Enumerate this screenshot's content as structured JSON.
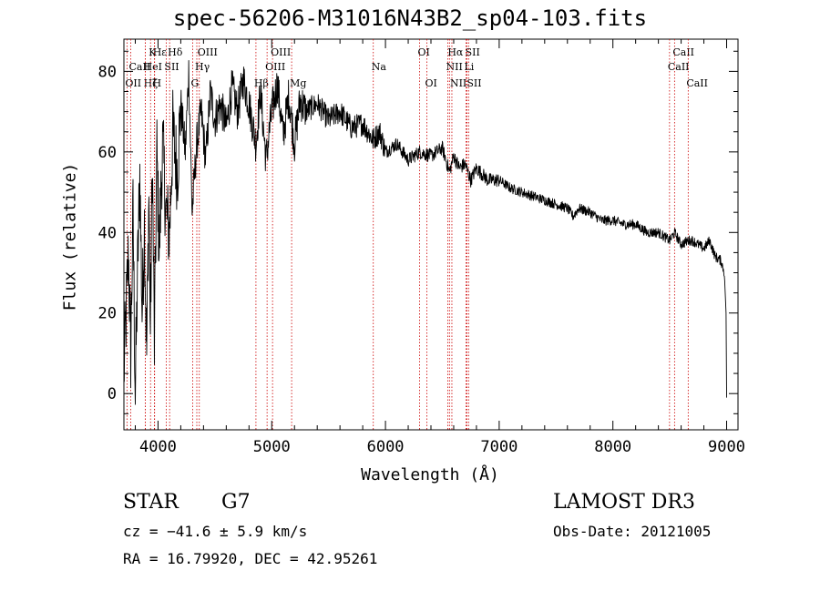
{
  "header": {
    "title": "spec-56206-M31016N43B2_sp04-103.fits"
  },
  "info": {
    "class_label": "STAR",
    "subclass": "G7",
    "survey": "LAMOST DR3",
    "redshift_line": "cz = −41.6 ± 5.9 km/s",
    "obs_date_line": "Obs-Date: 20121005",
    "coords_line": "RA =  16.79920, DEC =  42.95261"
  },
  "chart_data": {
    "type": "line",
    "title": "spec-56206-M31016N43B2_sp04-103.fits",
    "xlabel": "Wavelength (Å)",
    "ylabel": "Flux (relative)",
    "xlim": [
      3700,
      9100
    ],
    "ylim": [
      -9,
      88
    ],
    "xticks": [
      4000,
      5000,
      6000,
      7000,
      8000,
      9000
    ],
    "yticks": [
      0,
      20,
      40,
      60,
      80
    ],
    "series": [
      {
        "name": "spectrum",
        "x": [
          3700,
          3740,
          3760,
          3780,
          3800,
          3820,
          3840,
          3860,
          3880,
          3900,
          3920,
          3933,
          3950,
          3968,
          3990,
          4010,
          4040,
          4070,
          4101,
          4130,
          4170,
          4200,
          4240,
          4270,
          4300,
          4340,
          4380,
          4420,
          4460,
          4500,
          4550,
          4600,
          4650,
          4700,
          4750,
          4800,
          4861,
          4900,
          4950,
          5000,
          5050,
          5100,
          5150,
          5200,
          5250,
          5300,
          5400,
          5500,
          5600,
          5700,
          5800,
          5890,
          5950,
          6000,
          6100,
          6200,
          6300,
          6400,
          6500,
          6563,
          6600,
          6650,
          6700,
          6750,
          6800,
          6900,
          7000,
          7100,
          7200,
          7300,
          7400,
          7500,
          7600,
          7650,
          7700,
          7800,
          7900,
          8000,
          8100,
          8200,
          8300,
          8400,
          8500,
          8542,
          8600,
          8662,
          8700,
          8800,
          8850,
          8900,
          8950,
          8980,
          8995,
          9000
        ],
        "values": [
          5,
          35,
          10,
          45,
          0,
          30,
          55,
          20,
          42,
          10,
          50,
          15,
          58,
          12,
          60,
          35,
          62,
          45,
          40,
          65,
          55,
          72,
          60,
          80,
          45,
          62,
          70,
          58,
          75,
          68,
          72,
          66,
          76,
          70,
          78,
          72,
          62,
          75,
          58,
          70,
          77,
          64,
          74,
          62,
          73,
          70,
          72,
          68,
          70,
          66,
          67,
          63,
          65,
          60,
          62,
          58,
          60,
          59,
          61,
          55,
          59,
          56,
          57,
          53,
          56,
          53,
          53,
          51,
          50,
          49,
          48,
          47,
          46,
          44,
          46,
          45,
          43,
          43,
          42,
          42,
          40,
          40,
          38,
          40,
          37,
          38,
          38,
          36,
          38,
          34,
          33,
          30,
          20,
          -1
        ]
      }
    ],
    "line_markers": [
      {
        "name": "Hε",
        "wavelength": 3970,
        "row": 0
      },
      {
        "name": "CaII",
        "wavelength": 3760,
        "row": 1
      },
      {
        "name": "OII",
        "wavelength": 3727,
        "row": 2
      },
      {
        "name": "Hζ",
        "wavelength": 3889,
        "row": 2
      },
      {
        "name": "K",
        "wavelength": 3934,
        "row": 0
      },
      {
        "name": "HeI",
        "wavelength": 3889,
        "row": 1
      },
      {
        "name": "H",
        "wavelength": 3968,
        "row": 2
      },
      {
        "name": "SII",
        "wavelength": 4072,
        "row": 1
      },
      {
        "name": "Hδ",
        "wavelength": 4102,
        "row": 0
      },
      {
        "name": "OIII",
        "wavelength": 4363,
        "row": 0
      },
      {
        "name": "Hγ",
        "wavelength": 4341,
        "row": 1
      },
      {
        "name": "G",
        "wavelength": 4305,
        "row": 2
      },
      {
        "name": "Hβ",
        "wavelength": 4861,
        "row": 2
      },
      {
        "name": "OIII",
        "wavelength": 4959,
        "row": 1
      },
      {
        "name": "OIII",
        "wavelength": 5007,
        "row": 0
      },
      {
        "name": "Mg",
        "wavelength": 5175,
        "row": 2
      },
      {
        "name": "Na",
        "wavelength": 5893,
        "row": 1
      },
      {
        "name": "OI",
        "wavelength": 6300,
        "row": 0
      },
      {
        "name": "OI",
        "wavelength": 6364,
        "row": 2
      },
      {
        "name": "Hα",
        "wavelength": 6563,
        "row": 0
      },
      {
        "name": "NII",
        "wavelength": 6548,
        "row": 1
      },
      {
        "name": "NII",
        "wavelength": 6584,
        "row": 2
      },
      {
        "name": "SII",
        "wavelength": 6717,
        "row": 0
      },
      {
        "name": "Li",
        "wavelength": 6708,
        "row": 1
      },
      {
        "name": "SII",
        "wavelength": 6731,
        "row": 2
      },
      {
        "name": "CaII",
        "wavelength": 8498,
        "row": 1
      },
      {
        "name": "CaII",
        "wavelength": 8542,
        "row": 0
      },
      {
        "name": "CaII",
        "wavelength": 8662,
        "row": 2
      }
    ]
  }
}
